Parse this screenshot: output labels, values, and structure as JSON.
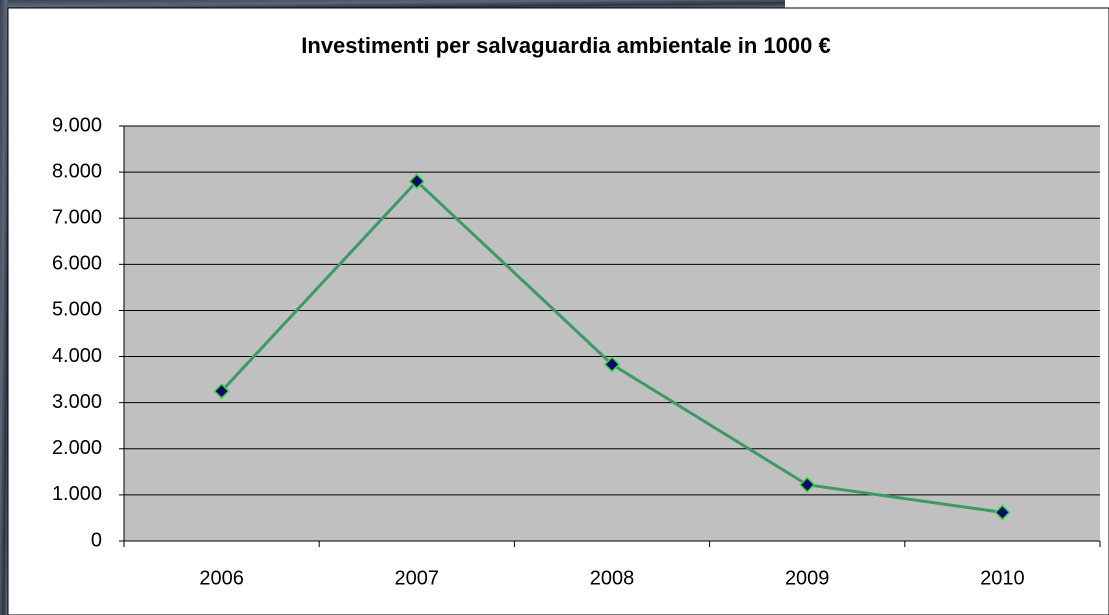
{
  "chart_data": {
    "type": "line",
    "title": "Investimenti per salvaguardia ambientale in 1000 €",
    "categories": [
      "2006",
      "2007",
      "2008",
      "2009",
      "2010"
    ],
    "values": [
      3250,
      7800,
      3830,
      1220,
      620
    ],
    "color": "#3c9a64",
    "marker_color": "#0a0a6e",
    "plot_background": "#c0c0c0",
    "ylim": [
      0,
      9000
    ],
    "yticks": [
      0,
      {
        "value": 1000,
        "label": "1.000"
      },
      {
        "value": 2000,
        "label": "2.000"
      },
      {
        "value": 3000,
        "label": "3.000"
      },
      {
        "value": 4000,
        "label": "4.000"
      },
      {
        "value": 5000,
        "label": "5.000"
      },
      {
        "value": 6000,
        "label": "6.000"
      },
      {
        "value": 7000,
        "label": "7.000"
      },
      {
        "value": 8000,
        "label": "8.000"
      },
      {
        "value": 9000,
        "label": "9.000"
      }
    ],
    "grid": true
  }
}
